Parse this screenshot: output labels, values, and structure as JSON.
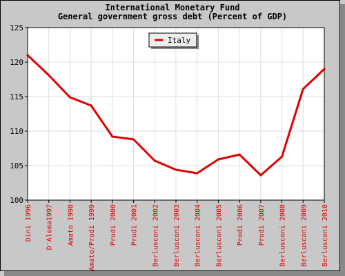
{
  "chart_data": {
    "type": "line",
    "title": "International Monetary Fund",
    "subtitle": "General government gross debt (Percent of GDP)",
    "xlabel": "",
    "ylabel": "",
    "ylim": [
      100,
      125
    ],
    "yticks": [
      "100",
      "105",
      "110",
      "115",
      "120",
      "125"
    ],
    "grid": true,
    "legend": "top-center",
    "colors": {
      "background": "#c8c8c8",
      "plot_background": "#ffffff",
      "series": "#e00000",
      "x_labels": "#e00000",
      "grid": "#dddddd"
    },
    "categories": [
      "Dini 1996",
      "D'Alema1997",
      "Amato 1998",
      "Amato/Prodi 1999",
      "Prodi 2000",
      "Prodi 2001",
      "Berlusconi 2002",
      "Berlusconi 2003",
      "Berlusconi 2004",
      "Berlusconi 2005",
      "Prodi 2006",
      "Prodi 2007",
      "Berlusconi 2008",
      "Berlusconi 2009",
      "Berlusconi 2010"
    ],
    "series": [
      {
        "name": "Italy",
        "values": [
          121.0,
          118.1,
          114.9,
          113.7,
          109.2,
          108.8,
          105.7,
          104.4,
          103.9,
          105.9,
          106.6,
          103.6,
          106.3,
          116.1,
          119.0
        ]
      }
    ]
  }
}
